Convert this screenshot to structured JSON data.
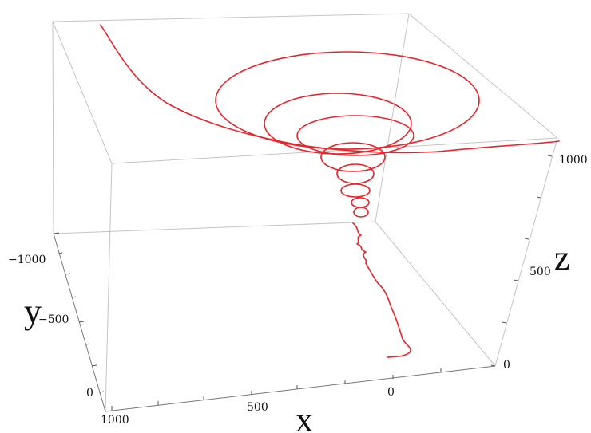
{
  "chart_data": {
    "type": "line",
    "projection": "3d-box",
    "grid": false,
    "axes": {
      "x": {
        "label": "x",
        "ticks": [
          "1000",
          "500",
          "0"
        ]
      },
      "y": {
        "label": "y",
        "ticks": [
          "−1000",
          "−500",
          "0"
        ]
      },
      "z": {
        "label": "z",
        "ticks": [
          "0",
          "500",
          "1000"
        ]
      }
    },
    "series": [
      {
        "color": "#e8242b",
        "description": "spiral trajectory: starts near ground, narrow coils rising, widening coils near top, then a trailing branch",
        "points": [
          [
            487,
            447
          ],
          [
            500,
            446
          ],
          [
            509,
            441
          ],
          [
            513,
            433
          ],
          [
            506,
            424
          ],
          [
            502,
            410
          ],
          [
            496,
            392
          ],
          [
            490,
            376
          ],
          [
            483,
            362
          ],
          [
            474,
            348
          ],
          [
            464,
            336
          ],
          [
            458,
            326
          ],
          [
            462,
            318
          ],
          [
            453,
            312
          ],
          [
            458,
            305
          ],
          [
            447,
            298
          ]
        ]
      }
    ],
    "colors": {
      "box": "#bdbdbd",
      "axis": "#555555",
      "curve": "#e8242b"
    }
  }
}
